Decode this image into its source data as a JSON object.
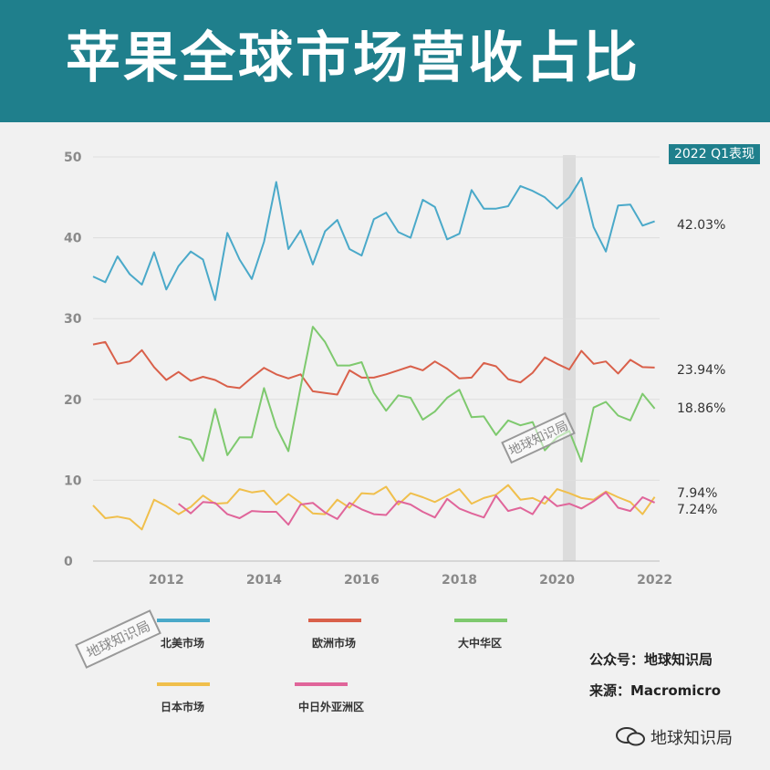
{
  "header": {
    "title": "苹果全球市场营收占比"
  },
  "badge": "2022 Q1表现",
  "credits": {
    "account": "公众号：地球知识局",
    "source": "来源：Macromicro"
  },
  "watermark": {
    "text": "地球知识局"
  },
  "stamp": "地球知识局",
  "chart_data": {
    "type": "line",
    "title": "苹果全球市场营收占比",
    "xlim": [
      2010.5,
      2022.1
    ],
    "ylim": [
      0,
      50
    ],
    "x_ticks": [
      2012,
      2014,
      2016,
      2018,
      2020,
      2022
    ],
    "y_ticks": [
      0,
      10,
      20,
      30,
      40,
      50
    ],
    "highlight_x": 2020.25,
    "legend_position": "bottom",
    "series": [
      {
        "name": "北美市场",
        "color": "#4aa9c9",
        "end_label": "42.03%",
        "x": [
          2010.5,
          2010.75,
          2011,
          2011.25,
          2011.5,
          2011.75,
          2012,
          2012.25,
          2012.5,
          2012.75,
          2013,
          2013.25,
          2013.5,
          2013.75,
          2014,
          2014.25,
          2014.5,
          2014.75,
          2015,
          2015.25,
          2015.5,
          2015.75,
          2016,
          2016.25,
          2016.5,
          2016.75,
          2017,
          2017.25,
          2017.5,
          2017.75,
          2018,
          2018.25,
          2018.5,
          2018.75,
          2019,
          2019.25,
          2019.5,
          2019.75,
          2020,
          2020.25,
          2020.5,
          2020.75,
          2021,
          2021.25,
          2021.5,
          2021.75,
          2022
        ],
        "y": [
          35.2,
          34.5,
          37.7,
          35.5,
          34.2,
          38.2,
          33.6,
          36.5,
          38.3,
          37.3,
          32.3,
          40.6,
          37.3,
          34.9,
          39.5,
          46.9,
          38.6,
          40.9,
          36.7,
          40.8,
          42.2,
          38.6,
          37.8,
          42.3,
          43.1,
          40.7,
          40.0,
          44.7,
          43.8,
          39.8,
          40.5,
          45.9,
          43.6,
          43.6,
          43.9,
          46.4,
          45.8,
          45.0,
          43.6,
          45.0,
          47.4,
          41.3,
          38.3,
          44.0,
          44.1,
          41.5,
          42.03
        ]
      },
      {
        "name": "欧洲市场",
        "color": "#d9604a",
        "end_label": "23.94%",
        "x": [
          2010.5,
          2010.75,
          2011,
          2011.25,
          2011.5,
          2011.75,
          2012,
          2012.25,
          2012.5,
          2012.75,
          2013,
          2013.25,
          2013.5,
          2013.75,
          2014,
          2014.25,
          2014.5,
          2014.75,
          2015,
          2015.25,
          2015.5,
          2015.75,
          2016,
          2016.25,
          2016.5,
          2016.75,
          2017,
          2017.25,
          2017.5,
          2017.75,
          2018,
          2018.25,
          2018.5,
          2018.75,
          2019,
          2019.25,
          2019.5,
          2019.75,
          2020,
          2020.25,
          2020.5,
          2020.75,
          2021,
          2021.25,
          2021.5,
          2021.75,
          2022
        ],
        "y": [
          26.8,
          27.1,
          24.4,
          24.7,
          26.1,
          24.0,
          22.4,
          23.4,
          22.3,
          22.8,
          22.4,
          21.6,
          21.4,
          22.7,
          23.9,
          23.1,
          22.6,
          23.1,
          21.0,
          20.8,
          20.6,
          23.6,
          22.7,
          22.7,
          23.1,
          23.6,
          24.1,
          23.6,
          24.7,
          23.8,
          22.6,
          22.7,
          24.5,
          24.1,
          22.5,
          22.1,
          23.3,
          25.2,
          24.4,
          23.7,
          26.0,
          24.4,
          24.7,
          23.2,
          24.9,
          24.0,
          23.94
        ]
      },
      {
        "name": "大中华区",
        "color": "#7ec96e",
        "end_label": "18.86%",
        "x": [
          2012.25,
          2012.5,
          2012.75,
          2013,
          2013.25,
          2013.5,
          2013.75,
          2014,
          2014.25,
          2014.5,
          2014.75,
          2015,
          2015.25,
          2015.5,
          2015.75,
          2016,
          2016.25,
          2016.5,
          2016.75,
          2017,
          2017.25,
          2017.5,
          2017.75,
          2018,
          2018.25,
          2018.5,
          2018.75,
          2019,
          2019.25,
          2019.5,
          2019.75,
          2020,
          2020.25,
          2020.5,
          2020.75,
          2021,
          2021.25,
          2021.5,
          2021.75,
          2022
        ],
        "y": [
          15.4,
          15.0,
          12.4,
          18.8,
          13.1,
          15.3,
          15.3,
          21.4,
          16.6,
          13.6,
          21.5,
          29.0,
          27.1,
          24.2,
          24.2,
          24.6,
          20.8,
          18.6,
          20.5,
          20.2,
          17.5,
          18.5,
          20.2,
          21.2,
          17.8,
          17.9,
          15.6,
          17.4,
          16.8,
          17.2,
          13.7,
          15.3,
          16.1,
          12.3,
          19.0,
          19.7,
          18.0,
          17.4,
          20.7,
          18.86
        ]
      },
      {
        "name": "日本市场",
        "color": "#f0bf4c",
        "end_label": "7.94%",
        "x": [
          2010.5,
          2010.75,
          2011,
          2011.25,
          2011.5,
          2011.75,
          2012,
          2012.25,
          2012.5,
          2012.75,
          2013,
          2013.25,
          2013.5,
          2013.75,
          2014,
          2014.25,
          2014.5,
          2014.75,
          2015,
          2015.25,
          2015.5,
          2015.75,
          2016,
          2016.25,
          2016.5,
          2016.75,
          2017,
          2017.25,
          2017.5,
          2017.75,
          2018,
          2018.25,
          2018.5,
          2018.75,
          2019,
          2019.25,
          2019.5,
          2019.75,
          2020,
          2020.25,
          2020.5,
          2020.75,
          2021,
          2021.25,
          2021.5,
          2021.75,
          2022
        ],
        "y": [
          6.9,
          5.3,
          5.5,
          5.2,
          3.9,
          7.6,
          6.8,
          5.8,
          6.7,
          8.1,
          7.1,
          7.2,
          8.9,
          8.5,
          8.7,
          7.0,
          8.3,
          7.2,
          5.9,
          5.8,
          7.6,
          6.6,
          8.4,
          8.3,
          9.2,
          7.0,
          8.4,
          7.9,
          7.3,
          8.1,
          8.9,
          7.1,
          7.8,
          8.2,
          9.4,
          7.6,
          7.8,
          7.1,
          8.9,
          8.4,
          7.8,
          7.6,
          8.6,
          7.9,
          7.3,
          5.8,
          7.94
        ]
      },
      {
        "name": "中日外亚洲区",
        "color": "#e0659a",
        "end_label": "7.24%",
        "x": [
          2012.25,
          2012.5,
          2012.75,
          2013,
          2013.25,
          2013.5,
          2013.75,
          2014,
          2014.25,
          2014.5,
          2014.75,
          2015,
          2015.25,
          2015.5,
          2015.75,
          2016,
          2016.25,
          2016.5,
          2016.75,
          2017,
          2017.25,
          2017.5,
          2017.75,
          2018,
          2018.25,
          2018.5,
          2018.75,
          2019,
          2019.25,
          2019.5,
          2019.75,
          2020,
          2020.25,
          2020.5,
          2020.75,
          2021,
          2021.25,
          2021.5,
          2021.75,
          2022
        ],
        "y": [
          7.1,
          5.9,
          7.3,
          7.2,
          5.8,
          5.3,
          6.2,
          6.1,
          6.1,
          4.5,
          7.0,
          7.2,
          6.0,
          5.2,
          7.2,
          6.4,
          5.8,
          5.7,
          7.4,
          7.0,
          6.1,
          5.4,
          7.7,
          6.5,
          5.9,
          5.4,
          8.1,
          6.2,
          6.6,
          5.8,
          8.0,
          6.8,
          7.1,
          6.5,
          7.4,
          8.5,
          6.6,
          6.2,
          7.9,
          7.24
        ]
      }
    ]
  }
}
